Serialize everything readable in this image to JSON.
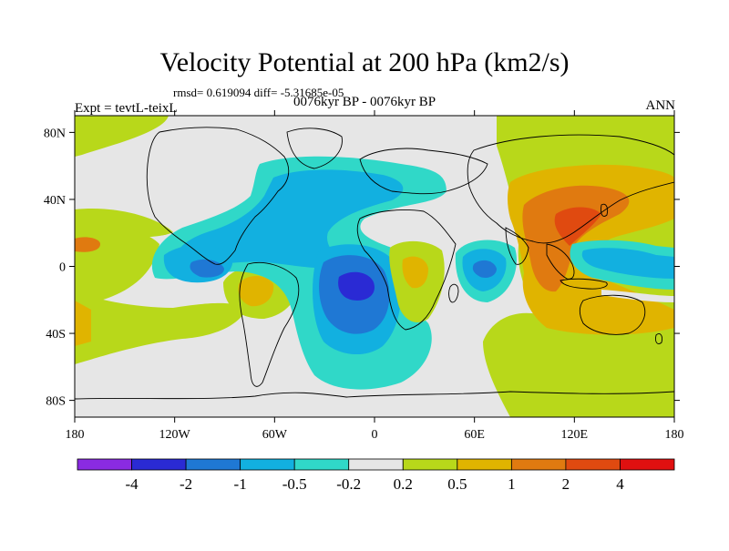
{
  "header": {
    "title": "Velocity Potential at 200 hPa (km2/s)",
    "stats": "rmsd= 0.619094 diff= -5.31685e-05",
    "experiment": "Expt = tevtL-teixL",
    "period": "0076kyr BP - 0076kyr BP",
    "season": "ANN"
  },
  "map": {
    "projection": "cylindrical-equidistant",
    "lon_range": [
      -180,
      180
    ],
    "lat_range": [
      -90,
      90
    ],
    "lat_ticks": [
      {
        "value": 80,
        "label": "80N"
      },
      {
        "value": 40,
        "label": "40N"
      },
      {
        "value": 0,
        "label": "0"
      },
      {
        "value": -40,
        "label": "40S"
      },
      {
        "value": -80,
        "label": "80S"
      }
    ],
    "lon_ticks": [
      {
        "value": -180,
        "label": "180"
      },
      {
        "value": -120,
        "label": "120W"
      },
      {
        "value": -60,
        "label": "60W"
      },
      {
        "value": 0,
        "label": "0"
      },
      {
        "value": 60,
        "label": "60E"
      },
      {
        "value": 120,
        "label": "120E"
      },
      {
        "value": 180,
        "label": "180"
      }
    ]
  },
  "colorbar": {
    "colors": [
      "#8a2be2",
      "#2a2ad4",
      "#1f78d4",
      "#12b0e0",
      "#30d8c8",
      "#e6e6e6",
      "#b8d81a",
      "#e0b400",
      "#e07a10",
      "#e04a10",
      "#e01010"
    ],
    "labels": [
      "-4",
      "-2",
      "-1",
      "-0.5",
      "-0.2",
      "0.2",
      "0.5",
      "1",
      "2",
      "4"
    ]
  }
}
